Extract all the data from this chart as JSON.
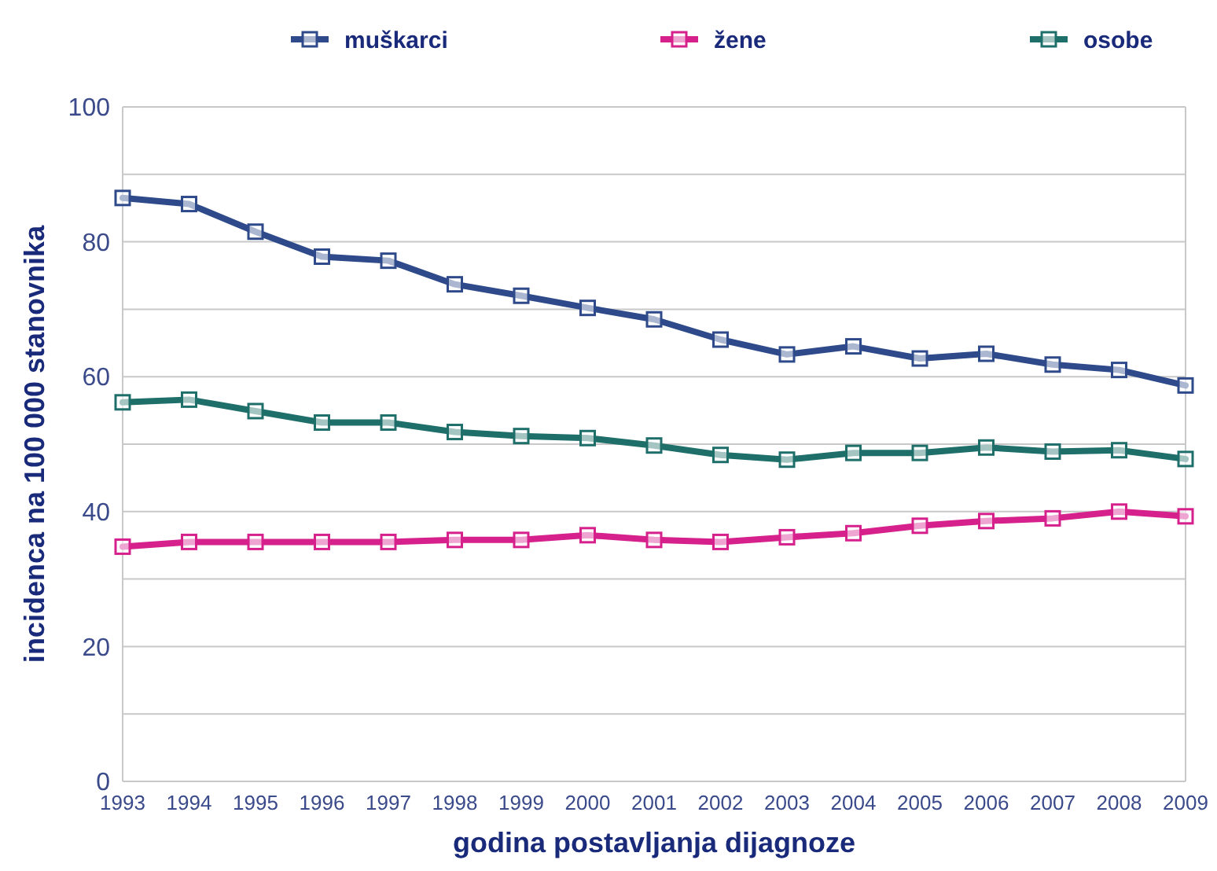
{
  "chart_data": {
    "type": "line",
    "xlabel": "godina postavljanja dijagnoze",
    "ylabel": "incidenca na 100 000 stanovnika",
    "categories": [
      "1993",
      "1994",
      "1995",
      "1996",
      "1997",
      "1998",
      "1999",
      "2000",
      "2001",
      "2002",
      "2003",
      "2004",
      "2005",
      "2006",
      "2007",
      "2008",
      "2009"
    ],
    "series": [
      {
        "name": "muškarci",
        "color": "#2e4a8a",
        "values": [
          86.5,
          85.6,
          81.5,
          77.8,
          77.2,
          73.7,
          72,
          70.2,
          68.5,
          65.5,
          63.3,
          64.5,
          62.7,
          63.4,
          61.8,
          61,
          58.7
        ]
      },
      {
        "name": "žene",
        "color": "#d6208c",
        "values": [
          34.8,
          35.5,
          35.5,
          35.5,
          35.5,
          35.8,
          35.8,
          36.5,
          35.8,
          35.5,
          36.2,
          36.8,
          37.9,
          38.6,
          39,
          40,
          39.3
        ]
      },
      {
        "name": "osobe",
        "color": "#1e6e6a",
        "values": [
          56.2,
          56.6,
          54.9,
          53.2,
          53.2,
          51.8,
          51.2,
          50.9,
          49.8,
          48.4,
          47.7,
          48.7,
          48.7,
          49.5,
          48.9,
          49.1,
          47.8
        ]
      }
    ],
    "ylim": [
      0,
      100
    ],
    "yticks": [
      0,
      {
        "value": 10,
        "label": null
      },
      20,
      {
        "value": 30,
        "label": null
      },
      40,
      {
        "value": 50,
        "label": null
      },
      60,
      {
        "value": 70,
        "label": null
      },
      80,
      {
        "value": 90,
        "label": null
      },
      100
    ],
    "grid": "y",
    "legend": "top",
    "marker": "square",
    "line_style": "solid"
  }
}
